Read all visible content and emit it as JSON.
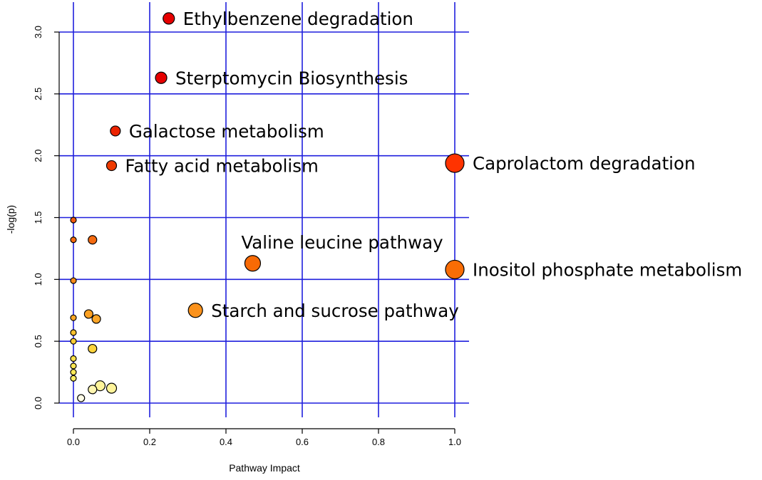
{
  "chart_data": {
    "type": "scatter",
    "title": "",
    "xlabel": "Pathway Impact",
    "ylabel": "-log(p)",
    "xlim": [
      -0.05,
      1.05
    ],
    "ylim": [
      -0.1,
      3.1
    ],
    "grid": true,
    "grid_color": "#1f1fdd",
    "x_ticks": [
      {
        "value": 0.0,
        "label": "0.0"
      },
      {
        "value": 0.2,
        "label": "0.2"
      },
      {
        "value": 0.4,
        "label": "0.4"
      },
      {
        "value": 0.6,
        "label": "0.6"
      },
      {
        "value": 0.8,
        "label": "0.8"
      },
      {
        "value": 1.0,
        "label": "1.0"
      }
    ],
    "y_ticks": [
      {
        "value": 0.0,
        "label": "0.0"
      },
      {
        "value": 0.5,
        "label": "0.5"
      },
      {
        "value": 1.0,
        "label": "1.0"
      },
      {
        "value": 1.5,
        "label": "1.5"
      },
      {
        "value": 2.0,
        "label": "2.0"
      },
      {
        "value": 2.5,
        "label": "2.5"
      },
      {
        "value": 3.0,
        "label": "3.0"
      }
    ],
    "points": [
      {
        "x": 0.25,
        "y": 3.11,
        "size": 8,
        "color": "#e60000",
        "label": "Ethylbenzene degradation"
      },
      {
        "x": 0.23,
        "y": 2.63,
        "size": 8,
        "color": "#e60000",
        "label": "Sterptomycin Biosynthesis"
      },
      {
        "x": 0.11,
        "y": 2.2,
        "size": 7,
        "color": "#ec2300",
        "label": "Galactose metabolism"
      },
      {
        "x": 0.1,
        "y": 1.92,
        "size": 7,
        "color": "#ee3a00",
        "label": "Fatty acid metabolism"
      },
      {
        "x": 1.0,
        "y": 1.94,
        "size": 13,
        "color": "#ff3300",
        "label": "Caprolactom degradation"
      },
      {
        "x": 0.47,
        "y": 1.13,
        "size": 11,
        "color": "#f86a05",
        "label": "Valine leucine pathway"
      },
      {
        "x": 1.0,
        "y": 1.08,
        "size": 13,
        "color": "#f96d05",
        "label": "Inositol phosphate metabolism"
      },
      {
        "x": 0.32,
        "y": 0.75,
        "size": 10,
        "color": "#fb921c",
        "label": "Starch and sucrose pathway"
      },
      {
        "x": 0.0,
        "y": 1.48,
        "size": 4,
        "color": "#f25a10",
        "label": ""
      },
      {
        "x": 0.0,
        "y": 1.32,
        "size": 4,
        "color": "#f46a10",
        "label": ""
      },
      {
        "x": 0.05,
        "y": 1.32,
        "size": 6,
        "color": "#f46a10",
        "label": ""
      },
      {
        "x": 0.0,
        "y": 0.99,
        "size": 4,
        "color": "#f98b1a",
        "label": ""
      },
      {
        "x": 0.0,
        "y": 0.69,
        "size": 4,
        "color": "#fca626",
        "label": ""
      },
      {
        "x": 0.04,
        "y": 0.72,
        "size": 6,
        "color": "#fca021",
        "label": ""
      },
      {
        "x": 0.06,
        "y": 0.68,
        "size": 6,
        "color": "#fca526",
        "label": ""
      },
      {
        "x": 0.0,
        "y": 0.57,
        "size": 4,
        "color": "#fdc12e",
        "label": ""
      },
      {
        "x": 0.0,
        "y": 0.5,
        "size": 4,
        "color": "#fdcc34",
        "label": ""
      },
      {
        "x": 0.05,
        "y": 0.44,
        "size": 6,
        "color": "#fdd43c",
        "label": ""
      },
      {
        "x": 0.0,
        "y": 0.36,
        "size": 4,
        "color": "#fde04a",
        "label": ""
      },
      {
        "x": 0.0,
        "y": 0.3,
        "size": 4,
        "color": "#fee652",
        "label": ""
      },
      {
        "x": 0.0,
        "y": 0.25,
        "size": 4,
        "color": "#feea58",
        "label": ""
      },
      {
        "x": 0.0,
        "y": 0.2,
        "size": 4,
        "color": "#feee62",
        "label": ""
      },
      {
        "x": 0.07,
        "y": 0.14,
        "size": 7,
        "color": "#fff49a",
        "label": ""
      },
      {
        "x": 0.1,
        "y": 0.12,
        "size": 7,
        "color": "#fff49a",
        "label": ""
      },
      {
        "x": 0.05,
        "y": 0.11,
        "size": 6,
        "color": "#fff6b0",
        "label": ""
      },
      {
        "x": 0.02,
        "y": 0.04,
        "size": 5,
        "color": "#fffde8",
        "label": ""
      }
    ]
  }
}
